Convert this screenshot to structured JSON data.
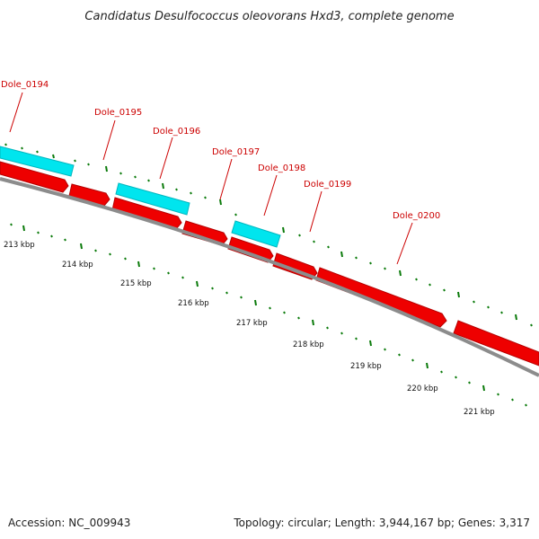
{
  "title": "Candidatus Desulfococcus oleovorans Hxd3, complete genome",
  "accession": "Accession: NC_009943",
  "summary": "Topology: circular; Length: 3,944,167 bp; Genes: 3,317",
  "colors": {
    "forward_gene": "#ee0000",
    "reverse_gene": "#00e5ee",
    "backbone": "#8c8c8c",
    "tick": "#0a7a0a",
    "label": "#cc0000"
  },
  "genes": [
    {
      "id": "Dole_0194",
      "label": "Dole_0194",
      "strand": "reverse"
    },
    {
      "id": "Dole_0195",
      "label": "Dole_0195",
      "strand": "forward"
    },
    {
      "id": "Dole_0196",
      "label": "Dole_0196",
      "strand": "reverse"
    },
    {
      "id": "Dole_0197",
      "label": "Dole_0197",
      "strand": "forward"
    },
    {
      "id": "Dole_0198",
      "label": "Dole_0198",
      "strand": "reverse"
    },
    {
      "id": "Dole_0199",
      "label": "Dole_0199",
      "strand": "forward"
    },
    {
      "id": "Dole_0200",
      "label": "Dole_0200",
      "strand": "forward"
    }
  ],
  "scale_labels": [
    "213 kbp",
    "214 kbp",
    "215 kbp",
    "216 kbp",
    "217 kbp",
    "218 kbp",
    "219 kbp",
    "220 kbp",
    "221 kbp"
  ]
}
